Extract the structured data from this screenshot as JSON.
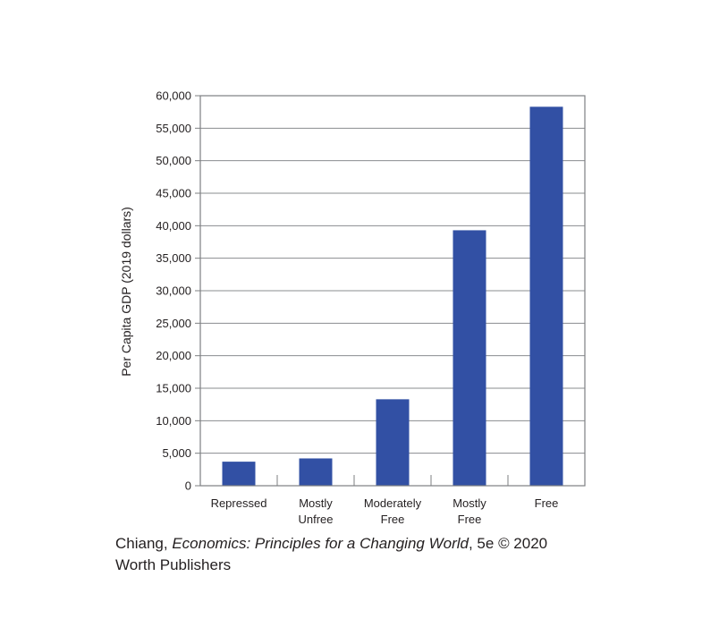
{
  "chart_data": {
    "type": "bar",
    "categories": [
      [
        "Repressed"
      ],
      [
        "Mostly",
        "Unfree"
      ],
      [
        "Moderately",
        "Free"
      ],
      [
        "Mostly",
        "Free"
      ],
      [
        "Free"
      ]
    ],
    "values": [
      3700,
      4200,
      13300,
      39300,
      58300
    ],
    "title": "",
    "xlabel": "",
    "ylabel": "Per Capita GDP (2019 dollars)",
    "ylim": [
      0,
      60000
    ],
    "yticks": [
      0,
      5000,
      10000,
      15000,
      20000,
      25000,
      30000,
      35000,
      40000,
      45000,
      50000,
      55000,
      60000
    ],
    "ytick_labels": [
      "0",
      "5,000",
      "10,000",
      "15,000",
      "20,000",
      "25,000",
      "30,000",
      "35,000",
      "40,000",
      "45,000",
      "50,000",
      "55,000",
      "60,000"
    ],
    "grid": true,
    "colors": {
      "bar": "#3250a4",
      "grid": "#8a8c8f",
      "axis": "#7d7f82"
    }
  },
  "credit": {
    "author": "Chiang, ",
    "book_title": "Economics: Principles for a Changing World",
    "edition": ", 5e © 2020",
    "publisher": "Worth Publishers"
  }
}
